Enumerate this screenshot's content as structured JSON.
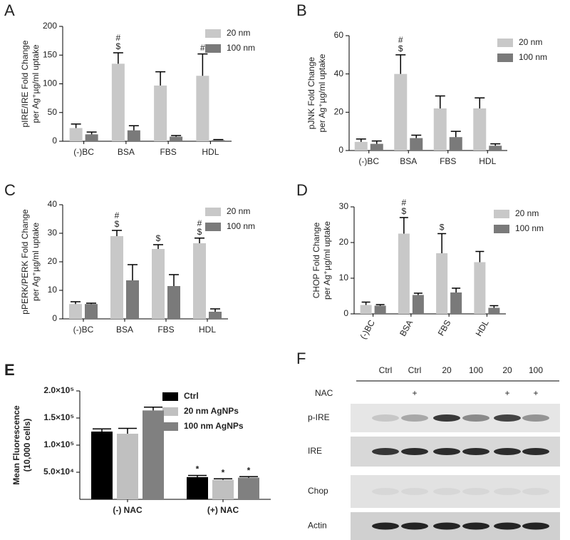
{
  "chart_data": [
    {
      "type": "bar",
      "panel_label": "A",
      "ylabel": [
        "pIRE/IRE Fold Change",
        "per Ag⁺µg/ml uptake"
      ],
      "categories": [
        "(-)BC",
        "BSA",
        "FBS",
        "HDL"
      ],
      "series": [
        {
          "name": "20 nm",
          "color": "#c8c8c8",
          "values": [
            23,
            135,
            97,
            114
          ],
          "errors": [
            7,
            19,
            24,
            38
          ],
          "annotations": [
            null,
            [
              "#",
              "$"
            ],
            null,
            [
              "#"
            ]
          ]
        },
        {
          "name": "100 nm",
          "color": "#7a7a7a",
          "values": [
            12,
            19,
            8,
            2
          ],
          "errors": [
            4,
            8,
            2,
            1
          ]
        }
      ],
      "ylim": [
        0,
        200
      ],
      "yticks": [
        0,
        50,
        100,
        150,
        200
      ]
    },
    {
      "type": "bar",
      "panel_label": "B",
      "ylabel": [
        "pJNK Fold Change",
        "per Ag⁺µg/ml uptake"
      ],
      "categories": [
        "(-)BC",
        "BSA",
        "FBS",
        "HDL"
      ],
      "series": [
        {
          "name": "20 nm",
          "color": "#c8c8c8",
          "values": [
            4.5,
            40,
            22,
            22
          ],
          "errors": [
            1.5,
            10,
            6.5,
            5.5
          ],
          "annotations": [
            null,
            [
              "#",
              "$"
            ],
            null,
            null
          ]
        },
        {
          "name": "100 nm",
          "color": "#7a7a7a",
          "values": [
            3.5,
            6.5,
            7,
            2.5
          ],
          "errors": [
            1.5,
            1.5,
            3,
            1
          ]
        }
      ],
      "ylim": [
        0,
        60
      ],
      "yticks": [
        0,
        20,
        40,
        60
      ]
    },
    {
      "type": "bar",
      "panel_label": "C",
      "ylabel": [
        "pPERK/PERK Fold Change",
        "per Ag⁺µg/ml uptake"
      ],
      "categories": [
        "(-)BC",
        "BSA",
        "FBS",
        "HDL"
      ],
      "series": [
        {
          "name": "20 nm",
          "color": "#c8c8c8",
          "values": [
            5.2,
            29,
            24.5,
            26.5
          ],
          "errors": [
            0.8,
            2,
            1.5,
            1.8
          ],
          "annotations": [
            null,
            [
              "#",
              "$"
            ],
            [
              "$"
            ],
            [
              "#",
              "$"
            ]
          ]
        },
        {
          "name": "100 nm",
          "color": "#7a7a7a",
          "values": [
            5.2,
            13.5,
            11.5,
            2.5
          ],
          "errors": [
            0.3,
            5.5,
            4,
            1
          ]
        }
      ],
      "ylim": [
        0,
        40
      ],
      "yticks": [
        0,
        10,
        20,
        30,
        40
      ]
    },
    {
      "type": "bar",
      "panel_label": "D",
      "ylabel": [
        "CHOP Fold Change",
        "per Ag⁺µg/ml uptake"
      ],
      "categories": [
        "(-)BC",
        "BSA",
        "FBS",
        "HDL"
      ],
      "series": [
        {
          "name": "20 nm",
          "color": "#c8c8c8",
          "values": [
            2.5,
            22.5,
            17,
            14.5
          ],
          "errors": [
            0.8,
            4.5,
            5.5,
            3
          ],
          "annotations": [
            null,
            [
              "#",
              "$"
            ],
            [
              "$"
            ],
            null
          ]
        },
        {
          "name": "100 nm",
          "color": "#7a7a7a",
          "values": [
            2.3,
            5.3,
            6,
            1.7
          ],
          "errors": [
            0.3,
            0.5,
            1.2,
            0.6
          ]
        }
      ],
      "ylim": [
        0,
        30
      ],
      "yticks": [
        0,
        10,
        20,
        30
      ]
    },
    {
      "type": "bar",
      "panel_label": "E",
      "ylabel": [
        "Mean Fluorescence",
        "(10,000 cells)"
      ],
      "categories": [
        "(-) NAC",
        "(+) NAC"
      ],
      "series": [
        {
          "name": "Ctrl",
          "color": "#000000",
          "values": [
            125000,
            41000
          ],
          "errors": [
            5000,
            3000
          ],
          "annotations": [
            null,
            [
              "*"
            ]
          ]
        },
        {
          "name": "20 nm AgNPs",
          "color": "#c0c0c0",
          "values": [
            121000,
            36000
          ],
          "errors": [
            10000,
            2000
          ],
          "annotations": [
            null,
            [
              "*"
            ]
          ]
        },
        {
          "name": "100 nm AgNPs",
          "color": "#808080",
          "values": [
            164000,
            40000
          ],
          "errors": [
            6000,
            2000
          ],
          "annotations": [
            null,
            [
              "*"
            ]
          ]
        }
      ],
      "ylim": [
        0,
        200000
      ],
      "yticks": [
        {
          "value": 50000,
          "label": "5.0×10⁴"
        },
        {
          "value": 100000,
          "label": "1.0×10⁵"
        },
        {
          "value": 150000,
          "label": "1.5×10⁵"
        },
        {
          "value": 200000,
          "label": "2.0×10⁵"
        }
      ]
    }
  ],
  "blot": {
    "panel_label": "F",
    "lanes": [
      "Ctrl",
      "Ctrl",
      "20",
      "100",
      "20",
      "100"
    ],
    "treatment_label": "NAC",
    "treatment": [
      null,
      "+",
      null,
      null,
      "+",
      "+"
    ],
    "rows": [
      "p-IRE",
      "IRE",
      "Chop",
      "Actin"
    ]
  }
}
